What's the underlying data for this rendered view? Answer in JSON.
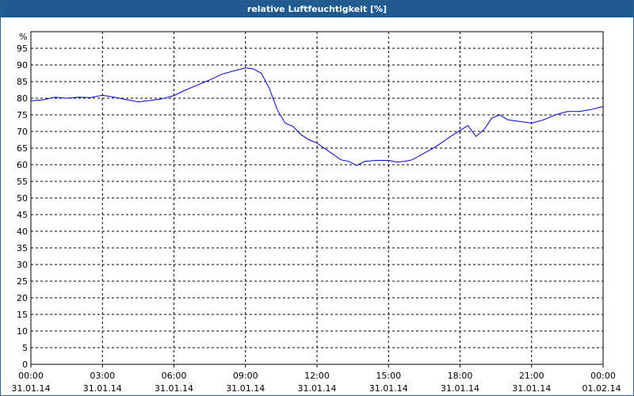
{
  "window": {
    "title": "relative Luftfeuchtigkeit [%]"
  },
  "chart_data": {
    "type": "line",
    "title": "relative Luftfeuchtigkeit [%]",
    "ylabel": "%",
    "xlabel": "",
    "ylim": [
      0,
      100
    ],
    "xlim_hours": [
      0,
      24
    ],
    "grid": true,
    "y_ticks": [
      "0",
      "5",
      "10",
      "15",
      "20",
      "25",
      "30",
      "35",
      "40",
      "45",
      "50",
      "55",
      "60",
      "65",
      "70",
      "75",
      "80",
      "85",
      "90",
      "95"
    ],
    "x_ticks": [
      {
        "time": "00:00",
        "date": "31.01.14"
      },
      {
        "time": "03:00",
        "date": "31.01.14"
      },
      {
        "time": "06:00",
        "date": "31.01.14"
      },
      {
        "time": "09:00",
        "date": "31.01.14"
      },
      {
        "time": "12:00",
        "date": "31.01.14"
      },
      {
        "time": "15:00",
        "date": "31.01.14"
      },
      {
        "time": "18:00",
        "date": "31.01.14"
      },
      {
        "time": "21:00",
        "date": "31.01.14"
      },
      {
        "time": "00:00",
        "date": "01.02.14"
      }
    ],
    "colors": {
      "line": "#0000cc",
      "grid": "#000000",
      "title_bar": "#1f5a90"
    },
    "series": [
      {
        "x": [
          "00:00",
          "00:30",
          "01:00",
          "01:30",
          "02:00",
          "02:30",
          "03:00",
          "03:30",
          "04:00",
          "04:30",
          "05:00",
          "05:30",
          "06:00",
          "06:30",
          "07:00",
          "07:30",
          "08:00",
          "08:30",
          "09:00",
          "09:20",
          "09:40",
          "10:00",
          "10:20",
          "10:40",
          "11:00",
          "11:20",
          "11:40",
          "12:00",
          "12:30",
          "13:00",
          "13:20",
          "13:40",
          "14:00",
          "14:30",
          "15:00",
          "15:20",
          "15:40",
          "16:00",
          "16:30",
          "17:00",
          "17:30",
          "18:00",
          "18:20",
          "18:40",
          "19:00",
          "19:20",
          "19:40",
          "20:00",
          "20:30",
          "21:00",
          "21:30",
          "22:00",
          "22:30",
          "23:00",
          "23:30",
          "24:00"
        ],
        "y": [
          79.2,
          79.5,
          80.3,
          80.0,
          80.3,
          80.2,
          80.9,
          80.3,
          79.6,
          78.9,
          79.3,
          79.8,
          80.8,
          82.5,
          84.0,
          85.5,
          87.2,
          88.2,
          89.1,
          88.8,
          87.5,
          83.0,
          76.5,
          72.5,
          71.5,
          69.0,
          67.5,
          66.5,
          64.0,
          61.5,
          61.0,
          59.8,
          61.0,
          61.3,
          61.3,
          60.8,
          61.0,
          61.5,
          63.5,
          65.5,
          68.0,
          70.3,
          71.8,
          68.5,
          70.5,
          74.0,
          75.0,
          73.5,
          73.0,
          72.5,
          73.5,
          75.0,
          76.0,
          76.0,
          76.6,
          77.5
        ]
      }
    ]
  }
}
